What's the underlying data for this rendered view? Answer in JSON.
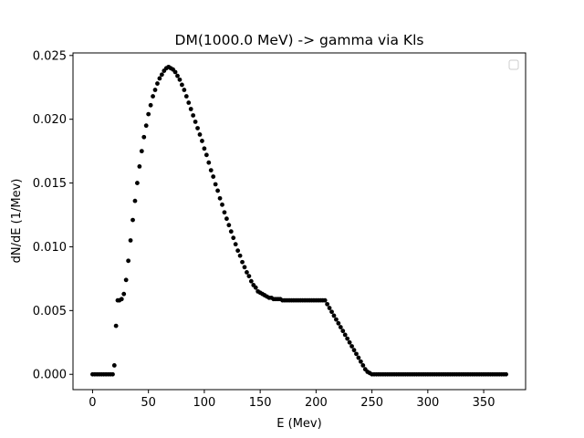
{
  "chart_data": {
    "type": "scatter",
    "title": "DM(1000.0 MeV) -> gamma via Kls",
    "xlabel": "E (Mev)",
    "ylabel": "dN/dE (1/Mev)",
    "xlim": [
      -17.5,
      387.5
    ],
    "ylim": [
      -0.0012,
      0.0252
    ],
    "xticks": [
      0,
      50,
      100,
      150,
      200,
      250,
      300,
      350
    ],
    "xtick_labels": [
      "0",
      "50",
      "100",
      "150",
      "200",
      "250",
      "300",
      "350"
    ],
    "yticks": [
      0.0,
      0.005,
      0.01,
      0.015,
      0.02,
      0.025
    ],
    "ytick_labels": [
      "0.000",
      "0.005",
      "0.010",
      "0.015",
      "0.020",
      "0.025"
    ],
    "grid": false,
    "legend": "top-right, empty",
    "marker_color": "#000000",
    "series": [
      {
        "points": [
          [
            0,
            0
          ],
          [
            2,
            0
          ],
          [
            4,
            0
          ],
          [
            6,
            0
          ],
          [
            8,
            0
          ],
          [
            10,
            0
          ],
          [
            12,
            0
          ],
          [
            14,
            0
          ],
          [
            16,
            0
          ],
          [
            18,
            0
          ],
          [
            19.5,
            0.0007
          ],
          [
            21,
            0.0038
          ],
          [
            22.5,
            0.0058
          ],
          [
            24,
            0.0058
          ],
          [
            26,
            0.0059
          ],
          [
            28,
            0.0063
          ],
          [
            30,
            0.0074
          ],
          [
            32,
            0.0089
          ],
          [
            34,
            0.0105
          ],
          [
            36,
            0.0121
          ],
          [
            38,
            0.0136
          ],
          [
            40,
            0.015
          ],
          [
            42,
            0.0163
          ],
          [
            44,
            0.0175
          ],
          [
            46,
            0.0186
          ],
          [
            48,
            0.0195
          ],
          [
            50,
            0.0204
          ],
          [
            52,
            0.0211
          ],
          [
            54,
            0.0218
          ],
          [
            56,
            0.0223
          ],
          [
            58,
            0.0228
          ],
          [
            60,
            0.0232
          ],
          [
            62,
            0.0235
          ],
          [
            64,
            0.0238
          ],
          [
            66,
            0.024
          ],
          [
            68,
            0.0241
          ],
          [
            70,
            0.024
          ],
          [
            72,
            0.0239
          ],
          [
            74,
            0.0237
          ],
          [
            76,
            0.0234
          ],
          [
            78,
            0.0231
          ],
          [
            80,
            0.0227
          ],
          [
            82,
            0.0223
          ],
          [
            84,
            0.0218
          ],
          [
            86,
            0.0213
          ],
          [
            88,
            0.0208
          ],
          [
            90,
            0.0203
          ],
          [
            92,
            0.0198
          ],
          [
            94,
            0.0193
          ],
          [
            96,
            0.0188
          ],
          [
            98,
            0.0183
          ],
          [
            100,
            0.0177
          ],
          [
            102,
            0.0172
          ],
          [
            104,
            0.0166
          ],
          [
            106,
            0.016
          ],
          [
            108,
            0.0155
          ],
          [
            110,
            0.0149
          ],
          [
            112,
            0.0144
          ],
          [
            114,
            0.0138
          ],
          [
            116,
            0.0133
          ],
          [
            118,
            0.0127
          ],
          [
            120,
            0.0122
          ],
          [
            122,
            0.0117
          ],
          [
            124,
            0.0112
          ],
          [
            126,
            0.0107
          ],
          [
            128,
            0.0102
          ],
          [
            130,
            0.0097
          ],
          [
            132,
            0.0093
          ],
          [
            134,
            0.0088
          ],
          [
            136,
            0.0084
          ],
          [
            138,
            0.008
          ],
          [
            140,
            0.0077
          ],
          [
            142,
            0.0073
          ],
          [
            144,
            0.007
          ],
          [
            146,
            0.0068
          ],
          [
            148,
            0.0065
          ],
          [
            150,
            0.0064
          ],
          [
            152,
            0.0063
          ],
          [
            154,
            0.0062
          ],
          [
            156,
            0.0061
          ],
          [
            158,
            0.006
          ],
          [
            160,
            0.006
          ],
          [
            162,
            0.0059
          ],
          [
            164,
            0.0059
          ],
          [
            166,
            0.0059
          ],
          [
            168,
            0.0059
          ],
          [
            170,
            0.0058
          ],
          [
            172,
            0.0058
          ],
          [
            174,
            0.0058
          ],
          [
            176,
            0.0058
          ],
          [
            178,
            0.0058
          ],
          [
            180,
            0.0058
          ],
          [
            182,
            0.0058
          ],
          [
            184,
            0.0058
          ],
          [
            186,
            0.0058
          ],
          [
            188,
            0.0058
          ],
          [
            190,
            0.0058
          ],
          [
            192,
            0.0058
          ],
          [
            194,
            0.0058
          ],
          [
            196,
            0.0058
          ],
          [
            198,
            0.0058
          ],
          [
            200,
            0.0058
          ],
          [
            202,
            0.0058
          ],
          [
            204,
            0.0058
          ],
          [
            206,
            0.0058
          ],
          [
            208,
            0.0058
          ],
          [
            210,
            0.0055
          ],
          [
            212,
            0.0052
          ],
          [
            214,
            0.0049
          ],
          [
            216,
            0.0046
          ],
          [
            218,
            0.0043
          ],
          [
            220,
            0.004
          ],
          [
            222,
            0.0037
          ],
          [
            224,
            0.0034
          ],
          [
            226,
            0.0031
          ],
          [
            228,
            0.0028
          ],
          [
            230,
            0.0025
          ],
          [
            232,
            0.0022
          ],
          [
            234,
            0.0019
          ],
          [
            236,
            0.0016
          ],
          [
            238,
            0.0013
          ],
          [
            240,
            0.001
          ],
          [
            242,
            0.0007
          ],
          [
            244,
            0.0004
          ],
          [
            246,
            0.0002
          ],
          [
            248,
            0.0001
          ],
          [
            250,
            0
          ],
          [
            252,
            0
          ],
          [
            254,
            0
          ],
          [
            256,
            0
          ],
          [
            258,
            0
          ],
          [
            260,
            0
          ],
          [
            262,
            0
          ],
          [
            264,
            0
          ],
          [
            266,
            0
          ],
          [
            268,
            0
          ],
          [
            270,
            0
          ],
          [
            272,
            0
          ],
          [
            274,
            0
          ],
          [
            276,
            0
          ],
          [
            278,
            0
          ],
          [
            280,
            0
          ],
          [
            282,
            0
          ],
          [
            284,
            0
          ],
          [
            286,
            0
          ],
          [
            288,
            0
          ],
          [
            290,
            0
          ],
          [
            292,
            0
          ],
          [
            294,
            0
          ],
          [
            296,
            0
          ],
          [
            298,
            0
          ],
          [
            300,
            0
          ],
          [
            302,
            0
          ],
          [
            304,
            0
          ],
          [
            306,
            0
          ],
          [
            308,
            0
          ],
          [
            310,
            0
          ],
          [
            312,
            0
          ],
          [
            314,
            0
          ],
          [
            316,
            0
          ],
          [
            318,
            0
          ],
          [
            320,
            0
          ],
          [
            322,
            0
          ],
          [
            324,
            0
          ],
          [
            326,
            0
          ],
          [
            328,
            0
          ],
          [
            330,
            0
          ],
          [
            332,
            0
          ],
          [
            334,
            0
          ],
          [
            336,
            0
          ],
          [
            338,
            0
          ],
          [
            340,
            0
          ],
          [
            342,
            0
          ],
          [
            344,
            0
          ],
          [
            346,
            0
          ],
          [
            348,
            0
          ],
          [
            350,
            0
          ],
          [
            352,
            0
          ],
          [
            354,
            0
          ],
          [
            356,
            0
          ],
          [
            358,
            0
          ],
          [
            360,
            0
          ],
          [
            362,
            0
          ],
          [
            364,
            0
          ],
          [
            366,
            0
          ],
          [
            368,
            0
          ],
          [
            370,
            0
          ]
        ]
      }
    ]
  }
}
